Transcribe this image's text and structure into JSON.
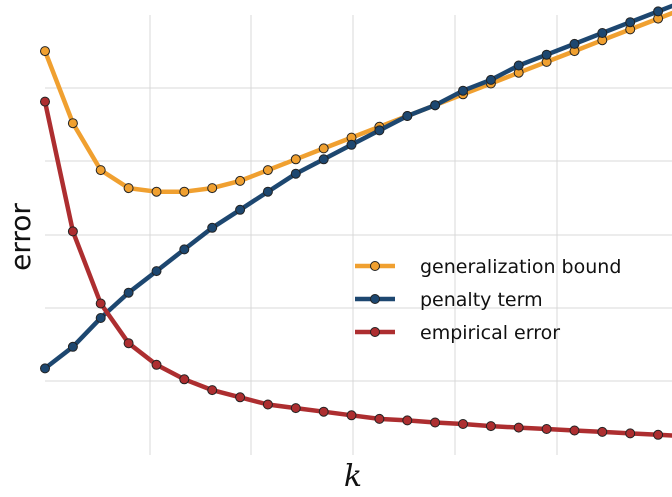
{
  "chart_data": {
    "type": "line",
    "xlabel": "k",
    "ylabel": "error",
    "xlim": [
      1,
      23.5
    ],
    "ylim": [
      -2.2,
      3.9
    ],
    "grid": true,
    "legend_position": "center-right",
    "series": [
      {
        "name": "generalization bound",
        "color": "#F0A030",
        "x": [
          1,
          2,
          3,
          4,
          5,
          6,
          7,
          8,
          9,
          10,
          11,
          12,
          13,
          14,
          15,
          16,
          17,
          18,
          19,
          20,
          21,
          22,
          23,
          24
        ],
        "y": [
          3.4,
          2.4,
          1.75,
          1.5,
          1.45,
          1.45,
          1.5,
          1.6,
          1.75,
          1.9,
          2.05,
          2.2,
          2.35,
          2.5,
          2.65,
          2.8,
          2.95,
          3.1,
          3.25,
          3.4,
          3.55,
          3.7,
          3.85,
          4.0
        ]
      },
      {
        "name": "penalty term",
        "color": "#1D4770",
        "x": [
          1,
          2,
          3,
          4,
          5,
          6,
          7,
          8,
          9,
          10,
          11,
          12,
          13,
          14,
          15,
          16,
          17,
          18,
          19,
          20,
          21,
          22,
          23,
          24
        ],
        "y": [
          -1.0,
          -0.7,
          -0.3,
          0.05,
          0.35,
          0.65,
          0.95,
          1.2,
          1.45,
          1.7,
          1.9,
          2.1,
          2.3,
          2.5,
          2.65,
          2.85,
          3.0,
          3.2,
          3.35,
          3.5,
          3.65,
          3.8,
          3.95,
          4.1
        ]
      },
      {
        "name": "empirical error",
        "color": "#AD2E30",
        "x": [
          1,
          2,
          3,
          4,
          5,
          6,
          7,
          8,
          9,
          10,
          11,
          12,
          13,
          14,
          15,
          16,
          17,
          18,
          19,
          20,
          21,
          22,
          23,
          24
        ],
        "y": [
          2.7,
          0.9,
          -0.1,
          -0.65,
          -0.95,
          -1.15,
          -1.3,
          -1.4,
          -1.5,
          -1.55,
          -1.6,
          -1.65,
          -1.7,
          -1.72,
          -1.75,
          -1.77,
          -1.8,
          -1.82,
          -1.84,
          -1.86,
          -1.88,
          -1.9,
          -1.92,
          -1.94
        ]
      }
    ]
  }
}
